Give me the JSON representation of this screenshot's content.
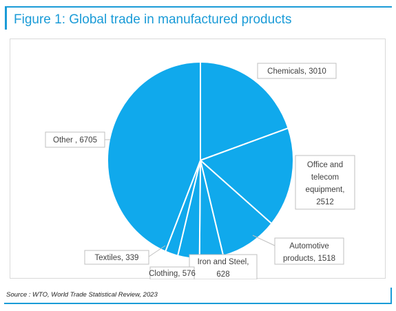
{
  "figure": {
    "title": "Figure 1: Global trade in manufactured products",
    "source": "Source : WTO, World Trade Statistical Review, 2023"
  },
  "colors": {
    "accent": "#1a9bd7",
    "slice_fill": "#10a9ec",
    "slice_stroke": "#ffffff"
  },
  "chart_data": {
    "type": "pie",
    "start": "top",
    "direction": "clockwise",
    "legend": "none",
    "slices": [
      {
        "label": "Chemicals",
        "value": 3010,
        "display": [
          "Chemicals, 3010"
        ]
      },
      {
        "label": "Office and telecom equipment",
        "value": 2512,
        "display": [
          "Office and",
          "telecom",
          "equipment,",
          "2512"
        ]
      },
      {
        "label": "Automotive products",
        "value": 1518,
        "display": [
          "Automotive",
          "products, 1518"
        ]
      },
      {
        "label": "Iron and Steel",
        "value": 628,
        "display": [
          "Iron and Steel,",
          "628"
        ]
      },
      {
        "label": "Clothing",
        "value": 576,
        "display": [
          "Clothing, 576"
        ]
      },
      {
        "label": "Textiles",
        "value": 339,
        "display": [
          "Textiles, 339"
        ]
      },
      {
        "label": "Other",
        "value": 6705,
        "display": [
          "Other , 6705"
        ]
      }
    ]
  }
}
